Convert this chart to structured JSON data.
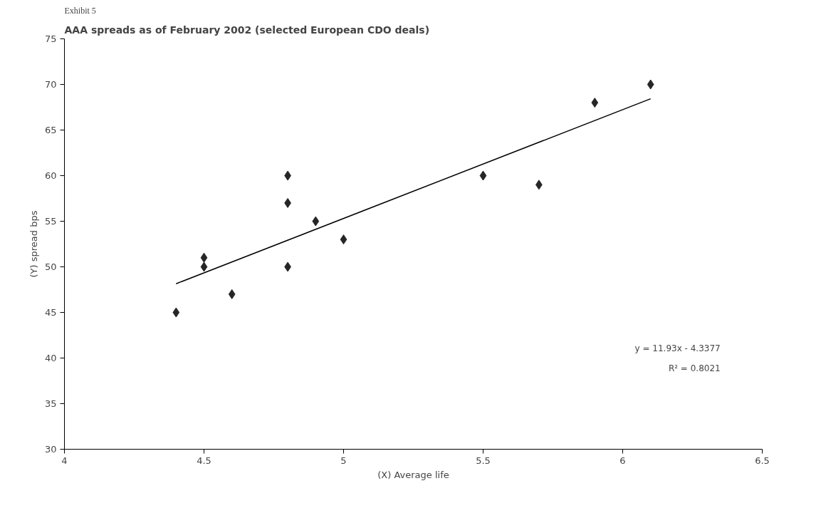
{
  "chart_data": {
    "type": "scatter",
    "title": "AAA spreads as of February 2002 (selected European CDO deals)",
    "subtitle": "Exhibit 5",
    "xlabel": "(X) Average life",
    "ylabel": "(Y) spread bps",
    "x": [
      4.4,
      4.5,
      4.5,
      4.6,
      4.8,
      4.8,
      4.8,
      4.9,
      5.0,
      5.5,
      5.7,
      5.9,
      6.1
    ],
    "series": [
      {
        "color": "#262626",
        "values": [
          45,
          51,
          50,
          47,
          60,
          57,
          50,
          55,
          53,
          60,
          59,
          68,
          70
        ]
      },
      {
        "type": "line",
        "marker": "none",
        "color": "#000000",
        "x": [
          4.4,
          6.1
        ],
        "values": [
          48.15,
          68.43
        ]
      }
    ],
    "marker": "diamond",
    "grid": false,
    "xlim": [
      4,
      6.5
    ],
    "xticks": [
      4,
      4.5,
      5,
      5.5,
      6,
      6.5
    ],
    "ylim": [
      30,
      75
    ],
    "yticks": [
      30,
      35,
      40,
      45,
      50,
      55,
      60,
      65,
      70,
      75
    ],
    "annotations": [
      "y = 11.93x - 4.3377",
      "R² = 0.8021"
    ]
  }
}
